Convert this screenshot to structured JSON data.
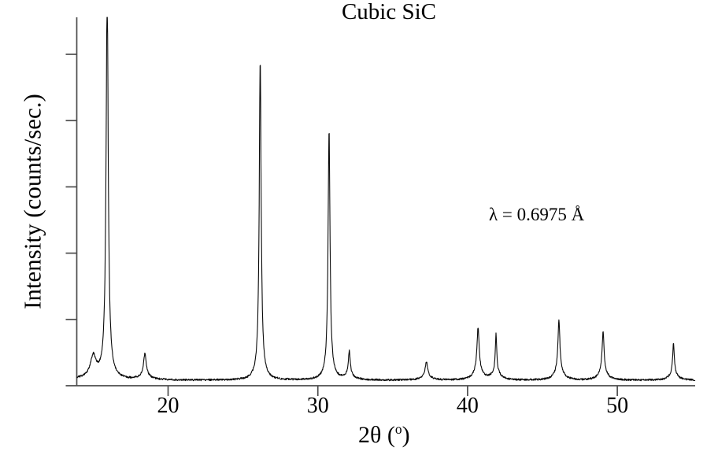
{
  "figure": {
    "title": "Cubic SiC",
    "annotation": "λ = 0.6975 Å"
  },
  "axes": {
    "y_label": "Intensity (counts/sec.)",
    "x_label_prefix": "2θ (",
    "x_label_degree": "o",
    "x_label_suffix": ")"
  },
  "chart_data": {
    "type": "line",
    "title": "Cubic SiC",
    "xlabel": "2θ (°)",
    "ylabel": "Intensity (counts/sec.)",
    "annotation": "λ = 0.6975 Å",
    "xlim": [
      13.9,
      55.2
    ],
    "x_ticks": [
      20,
      30,
      40,
      50
    ],
    "x_tick_labels": [
      "20",
      "30",
      "40",
      "50"
    ],
    "y_ticks_unlabeled": 5,
    "y_axis_numeric_labels": false,
    "grid": false,
    "line_color": "#0a0a0a",
    "axis_color": "#4d4d4d",
    "baseline": 0.004,
    "noise_amplitude": 0.005,
    "profile": {
      "core_fraction": 0.82,
      "skirt_max": 0.028,
      "skirt_width_factor": 4,
      "skirt_width_min": 0.32
    },
    "peaks": [
      {
        "two_theta": 15.0,
        "rel_intensity": 0.063,
        "hwhm": 0.2
      },
      {
        "two_theta": 15.93,
        "rel_intensity": 1.06,
        "hwhm": 0.085,
        "clipped_at_top": true
      },
      {
        "two_theta": 18.45,
        "rel_intensity": 0.071,
        "hwhm": 0.1
      },
      {
        "two_theta": 26.15,
        "rel_intensity": 0.879,
        "hwhm": 0.075
      },
      {
        "two_theta": 30.75,
        "rel_intensity": 0.685,
        "hwhm": 0.075
      },
      {
        "two_theta": 32.1,
        "rel_intensity": 0.078,
        "hwhm": 0.07
      },
      {
        "two_theta": 37.25,
        "rel_intensity": 0.05,
        "hwhm": 0.1
      },
      {
        "two_theta": 40.7,
        "rel_intensity": 0.143,
        "hwhm": 0.085
      },
      {
        "two_theta": 41.9,
        "rel_intensity": 0.125,
        "hwhm": 0.055
      },
      {
        "two_theta": 46.1,
        "rel_intensity": 0.166,
        "hwhm": 0.075
      },
      {
        "two_theta": 49.05,
        "rel_intensity": 0.134,
        "hwhm": 0.075
      },
      {
        "two_theta": 53.75,
        "rel_intensity": 0.101,
        "hwhm": 0.065
      }
    ]
  }
}
